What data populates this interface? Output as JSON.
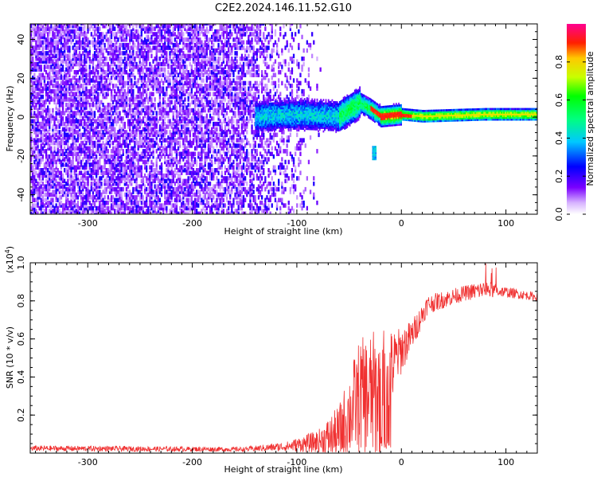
{
  "title": "C2E2.2024.146.11.52.G10",
  "chart_data": [
    {
      "type": "heatmap",
      "xlabel": "Height of straight line (km)",
      "ylabel": "Frequency (Hz)",
      "xlim": [
        -355,
        130
      ],
      "ylim": [
        -50,
        48
      ],
      "x_ticks": [
        -300,
        -200,
        -100,
        0,
        100
      ],
      "y_ticks": [
        -40,
        -20,
        0,
        20,
        40
      ],
      "x_tick_labels": [
        "-300",
        "-200",
        "-100",
        "0",
        "100"
      ],
      "y_tick_labels": [
        "-40",
        "-20",
        "0",
        "20",
        "40"
      ],
      "colorbar": {
        "label": "Normalized spectral amplitude",
        "range": [
          0,
          1
        ],
        "ticks": [
          0.0,
          0.2,
          0.4,
          0.6,
          0.8
        ],
        "tick_labels": [
          "0.0",
          "0.2",
          "0.4",
          "0.6",
          "0.8"
        ]
      },
      "ridge": [
        {
          "x": -140,
          "y": 0
        },
        {
          "x": -100,
          "y": 1
        },
        {
          "x": -60,
          "y": 0
        },
        {
          "x": -40,
          "y": 7
        },
        {
          "x": -30,
          "y": 4
        },
        {
          "x": -20,
          "y": 0
        },
        {
          "x": 0,
          "y": 1
        },
        {
          "x": 20,
          "y": 0
        },
        {
          "x": 80,
          "y": 1
        },
        {
          "x": 130,
          "y": 1
        }
      ],
      "side_feature": {
        "x": -26,
        "y": [
          -22,
          -15
        ]
      },
      "cutoff": {
        "x_dense_until": -150,
        "x_sparse_until": -75
      }
    },
    {
      "type": "line",
      "xlabel": "Height of straight line (km)",
      "ylabel": "SNR (10 * v/v)",
      "multiplier_label": "(x10",
      "multiplier_exp": "4",
      "multiplier_close": ")",
      "xlim": [
        -355,
        130
      ],
      "ylim": [
        0,
        1.0
      ],
      "x_ticks": [
        -300,
        -200,
        -100,
        0,
        100
      ],
      "y_ticks": [
        0.2,
        0.4,
        0.6,
        0.8,
        1.0
      ],
      "x_tick_labels": [
        "-300",
        "-200",
        "-100",
        "0",
        "100"
      ],
      "y_tick_labels": [
        "0.2",
        "0.4",
        "0.6",
        "0.8",
        "1.0"
      ],
      "series": [
        {
          "color": "#f03030",
          "envelope": [
            {
              "x": -355,
              "mean": 0.025,
              "noise": 0.015
            },
            {
              "x": -150,
              "mean": 0.02,
              "noise": 0.012
            },
            {
              "x": -110,
              "mean": 0.035,
              "noise": 0.025
            },
            {
              "x": -80,
              "mean": 0.06,
              "noise": 0.06
            },
            {
              "x": -60,
              "mean": 0.1,
              "noise": 0.15
            },
            {
              "x": -40,
              "mean": 0.3,
              "noise": 0.3
            },
            {
              "x": -25,
              "mean": 0.3,
              "noise": 0.35
            },
            {
              "x": -15,
              "mean": 0.35,
              "noise": 0.3
            },
            {
              "x": -5,
              "mean": 0.5,
              "noise": 0.15
            },
            {
              "x": 10,
              "mean": 0.62,
              "noise": 0.08
            },
            {
              "x": 25,
              "mean": 0.78,
              "noise": 0.05
            },
            {
              "x": 60,
              "mean": 0.84,
              "noise": 0.04
            },
            {
              "x": 80,
              "mean": 0.86,
              "noise": 0.05
            },
            {
              "x": 95,
              "mean": 0.85,
              "noise": 0.03
            },
            {
              "x": 130,
              "mean": 0.82,
              "noise": 0.02
            }
          ]
        }
      ]
    }
  ]
}
